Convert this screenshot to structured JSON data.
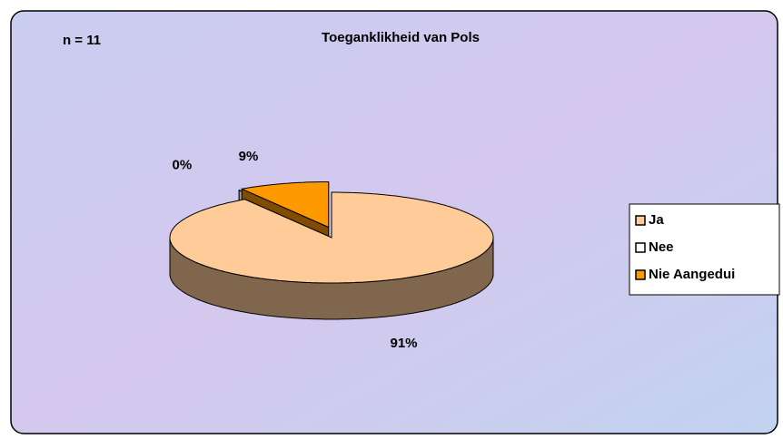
{
  "chart_data": {
    "type": "pie",
    "title": "Toeganklikheid van Pols",
    "annotation": "n = 11",
    "categories": [
      "Ja",
      "Nee",
      "Nie Aangedui"
    ],
    "values": [
      91,
      0,
      9
    ],
    "value_labels": [
      "91%",
      "0%",
      "9%"
    ],
    "colors": [
      "#ffcc99",
      "#ffffff",
      "#ff9900"
    ],
    "explode": [
      0,
      0.25,
      0.25
    ],
    "legend": "right"
  }
}
